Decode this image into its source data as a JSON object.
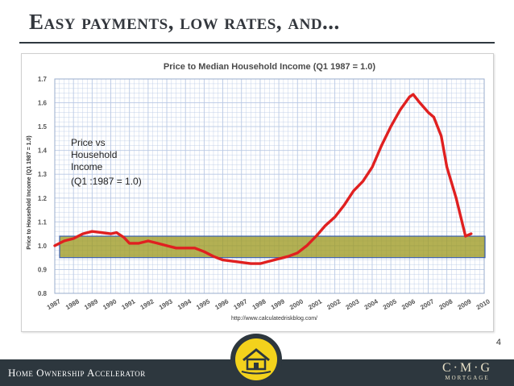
{
  "slide": {
    "title": "Easy payments, low rates, and...",
    "page_number": "4",
    "footer": "Home Ownership Accelerator",
    "brand_name": "C·M·G",
    "brand_sub": "MORTGAGE"
  },
  "annotation": {
    "lines": [
      "Price vs",
      "Household",
      "Income",
      "(Q1 :1987 = 1.0)"
    ]
  },
  "colors": {
    "line": "#e02020",
    "highlight": "#9e9a23",
    "highlight_border": "#3a5fb0",
    "grid": "#b8c8e4",
    "footer": "#2d373e",
    "badge": "#f3d21c"
  },
  "chart_data": {
    "type": "line",
    "title": "Price to Median Household Income (Q1 1987 = 1.0)",
    "ylabel": "Price to Household Income (Q1 1987 = 1.0)",
    "xlabel": "",
    "source": "http://www.calculatedriskblog.com/",
    "ylim": [
      0.8,
      1.7
    ],
    "xlim": [
      1987,
      2010
    ],
    "y_ticks": [
      "0.8",
      "0.9",
      "1.0",
      "1.1",
      "1.2",
      "1.3",
      "1.4",
      "1.5",
      "1.6",
      "1.7"
    ],
    "x_ticks": [
      "1987",
      "1988",
      "1989",
      "1990",
      "1991",
      "1992",
      "1993",
      "1994",
      "1995",
      "1996",
      "1997",
      "1998",
      "1999",
      "2000",
      "2001",
      "2002",
      "2003",
      "2004",
      "2005",
      "2006",
      "2007",
      "2008",
      "2009",
      "2010"
    ],
    "grid": true,
    "highlight_band": [
      0.95,
      1.04
    ],
    "series": [
      {
        "values": [
          [
            1987.0,
            1.0
          ],
          [
            1987.5,
            1.02
          ],
          [
            1988.0,
            1.03
          ],
          [
            1988.5,
            1.05
          ],
          [
            1989.0,
            1.06
          ],
          [
            1989.5,
            1.055
          ],
          [
            1990.0,
            1.05
          ],
          [
            1990.3,
            1.055
          ],
          [
            1990.7,
            1.035
          ],
          [
            1991.0,
            1.01
          ],
          [
            1991.5,
            1.01
          ],
          [
            1992.0,
            1.02
          ],
          [
            1992.5,
            1.01
          ],
          [
            1993.0,
            1.0
          ],
          [
            1993.5,
            0.99
          ],
          [
            1994.0,
            0.99
          ],
          [
            1994.5,
            0.99
          ],
          [
            1995.0,
            0.975
          ],
          [
            1995.5,
            0.955
          ],
          [
            1996.0,
            0.94
          ],
          [
            1996.5,
            0.935
          ],
          [
            1997.0,
            0.93
          ],
          [
            1997.5,
            0.925
          ],
          [
            1998.0,
            0.925
          ],
          [
            1998.5,
            0.935
          ],
          [
            1999.0,
            0.945
          ],
          [
            1999.5,
            0.955
          ],
          [
            2000.0,
            0.97
          ],
          [
            2000.5,
            1.0
          ],
          [
            2001.0,
            1.04
          ],
          [
            2001.5,
            1.085
          ],
          [
            2002.0,
            1.12
          ],
          [
            2002.5,
            1.17
          ],
          [
            2003.0,
            1.23
          ],
          [
            2003.5,
            1.27
          ],
          [
            2004.0,
            1.33
          ],
          [
            2004.5,
            1.42
          ],
          [
            2005.0,
            1.5
          ],
          [
            2005.5,
            1.57
          ],
          [
            2006.0,
            1.625
          ],
          [
            2006.2,
            1.635
          ],
          [
            2006.5,
            1.605
          ],
          [
            2007.0,
            1.56
          ],
          [
            2007.3,
            1.54
          ],
          [
            2007.7,
            1.46
          ],
          [
            2008.0,
            1.33
          ],
          [
            2008.5,
            1.2
          ],
          [
            2009.0,
            1.04
          ],
          [
            2009.3,
            1.05
          ]
        ]
      }
    ]
  }
}
